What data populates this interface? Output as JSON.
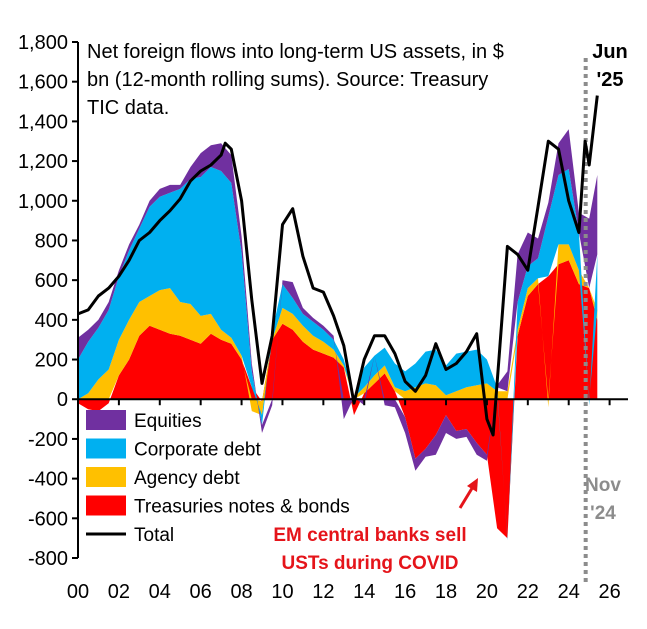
{
  "chart_data": {
    "type": "area",
    "title": "Net foreign flows into long-term US assets, in $ bn (12-month rolling sums). Source:  Treasury TIC data.",
    "title_lines": [
      "Net foreign flows into long-term US assets, in $",
      "bn (12-month rolling sums). Source:  Treasury",
      "TIC data."
    ],
    "xlabel": "",
    "ylabel": "",
    "xlim": [
      2000,
      2026.9
    ],
    "ylim": [
      -800,
      1800
    ],
    "x_ticks": [
      {
        "value": 2000,
        "label": "00"
      },
      {
        "value": 2002,
        "label": "02"
      },
      {
        "value": 2004,
        "label": "04"
      },
      {
        "value": 2006,
        "label": "06"
      },
      {
        "value": 2008,
        "label": "08"
      },
      {
        "value": 2010,
        "label": "10"
      },
      {
        "value": 2012,
        "label": "12"
      },
      {
        "value": 2014,
        "label": "14"
      },
      {
        "value": 2016,
        "label": "16"
      },
      {
        "value": 2018,
        "label": "18"
      },
      {
        "value": 2020,
        "label": "20"
      },
      {
        "value": 2022,
        "label": "22"
      },
      {
        "value": 2024,
        "label": "24"
      },
      {
        "value": 2026,
        "label": "26"
      }
    ],
    "y_ticks": [
      {
        "value": 1800,
        "label": "1,800"
      },
      {
        "value": 1600,
        "label": "1,600"
      },
      {
        "value": 1400,
        "label": "1,400"
      },
      {
        "value": 1200,
        "label": "1,200"
      },
      {
        "value": 1000,
        "label": "1,000"
      },
      {
        "value": 800,
        "label": "800"
      },
      {
        "value": 600,
        "label": "600"
      },
      {
        "value": 400,
        "label": "400"
      },
      {
        "value": 200,
        "label": "200"
      },
      {
        "value": 0,
        "label": "0"
      },
      {
        "value": -200,
        "label": "-200"
      },
      {
        "value": -400,
        "label": "-400"
      },
      {
        "value": -600,
        "label": "-600"
      },
      {
        "value": -800,
        "label": "-800"
      }
    ],
    "x": [
      2000,
      2000.5,
      2001,
      2001.5,
      2002,
      2002.5,
      2003,
      2003.5,
      2004,
      2004.5,
      2005,
      2005.5,
      2006,
      2006.5,
      2007,
      2007.5,
      2008,
      2008.5,
      2009,
      2009.5,
      2010,
      2010.5,
      2011,
      2011.5,
      2012,
      2012.5,
      2013,
      2013.5,
      2014,
      2014.5,
      2015,
      2015.5,
      2016,
      2016.5,
      2017,
      2017.5,
      2018,
      2018.5,
      2019,
      2019.5,
      2020,
      2020.5,
      2021,
      2021.5,
      2022,
      2022.5,
      2023,
      2023.5,
      2024,
      2024.5,
      2025,
      2025.4
    ],
    "series": [
      {
        "name": "Treasuries notes & bonds",
        "color": "#ff0000",
        "values": [
          -20,
          -50,
          -60,
          -20,
          120,
          200,
          320,
          370,
          350,
          330,
          320,
          300,
          280,
          330,
          300,
          280,
          200,
          60,
          -10,
          300,
          380,
          350,
          290,
          250,
          230,
          210,
          160,
          -80,
          30,
          80,
          130,
          40,
          -90,
          -300,
          -250,
          -180,
          -80,
          -160,
          -150,
          -220,
          -280,
          -650,
          -700,
          320,
          520,
          580,
          620,
          680,
          700,
          580,
          560,
          400
        ]
      },
      {
        "name": "Agency debt",
        "color": "#ffc000",
        "values": [
          0,
          30,
          100,
          150,
          180,
          200,
          170,
          150,
          200,
          230,
          170,
          180,
          140,
          100,
          50,
          30,
          20,
          -60,
          -70,
          0,
          80,
          80,
          80,
          70,
          60,
          40,
          10,
          10,
          30,
          40,
          40,
          20,
          40,
          60,
          80,
          70,
          20,
          40,
          60,
          70,
          80,
          40,
          40,
          30,
          40,
          30,
          -40,
          100,
          80,
          70,
          0,
          50
        ]
      },
      {
        "name": "Corporate debt",
        "color": "#00b0f0",
        "values": [
          200,
          260,
          260,
          300,
          320,
          350,
          370,
          450,
          470,
          480,
          570,
          630,
          700,
          740,
          800,
          780,
          520,
          80,
          -50,
          40,
          120,
          80,
          60,
          70,
          60,
          50,
          30,
          0,
          100,
          100,
          90,
          120,
          100,
          120,
          160,
          180,
          150,
          190,
          180,
          180,
          120,
          20,
          -10,
          140,
          110,
          100,
          300,
          350,
          380,
          190,
          -30,
          280
        ]
      },
      {
        "name": "Equities",
        "color": "#7030a0",
        "values": [
          110,
          60,
          40,
          40,
          30,
          30,
          20,
          30,
          40,
          40,
          20,
          60,
          120,
          110,
          140,
          140,
          80,
          40,
          -40,
          -30,
          20,
          80,
          30,
          20,
          20,
          20,
          -100,
          0,
          -30,
          0,
          -30,
          -40,
          -80,
          -60,
          -40,
          -100,
          -90,
          -40,
          -40,
          -60,
          -30,
          10,
          100,
          240,
          170,
          100,
          70,
          160,
          200,
          100,
          350,
          400
        ]
      }
    ],
    "total": {
      "name": "Total",
      "color": "#000000",
      "x": [
        2000,
        2000.5,
        2001,
        2001.5,
        2002,
        2002.5,
        2003,
        2003.5,
        2004,
        2004.5,
        2005,
        2005.5,
        2006,
        2006.5,
        2007,
        2007.2,
        2007.5,
        2008,
        2008.5,
        2009,
        2009.5,
        2010,
        2010.5,
        2011,
        2011.5,
        2012,
        2012.5,
        2013,
        2013.5,
        2014,
        2014.5,
        2015,
        2015.5,
        2016,
        2016.5,
        2017,
        2017.5,
        2018,
        2018.5,
        2019,
        2019.5,
        2020,
        2020.3,
        2020.6,
        2021,
        2021.5,
        2022,
        2022.5,
        2023,
        2023.5,
        2024,
        2024.5,
        2024.8,
        2025,
        2025.4
      ],
      "values": [
        430,
        450,
        520,
        560,
        620,
        700,
        800,
        840,
        900,
        950,
        1010,
        1100,
        1150,
        1180,
        1230,
        1290,
        1260,
        1000,
        500,
        80,
        320,
        880,
        960,
        720,
        560,
        540,
        420,
        270,
        -20,
        200,
        320,
        320,
        230,
        90,
        40,
        120,
        280,
        150,
        180,
        240,
        330,
        -100,
        -180,
        220,
        770,
        730,
        650,
        970,
        1300,
        1260,
        1000,
        840,
        1300,
        1180,
        1530
      ]
    },
    "annotations": [
      {
        "text_lines": [
          "EM central banks sell",
          "USTs during COVID"
        ],
        "color": "#e5141a",
        "x": 2020.2,
        "y": -470
      },
      {
        "text_lines": [
          "Jun",
          "'25"
        ],
        "color": "#000000",
        "x": 2025.5,
        "y": 1650
      },
      {
        "text_lines": [
          "Nov",
          "'24"
        ],
        "color": "#8c8c8c",
        "x": 2024.8,
        "y": -480
      }
    ],
    "vline": {
      "x": 2024.83,
      "style": "dotted",
      "color": "#8c8c8c"
    },
    "legend_placement": "bottom-left"
  }
}
